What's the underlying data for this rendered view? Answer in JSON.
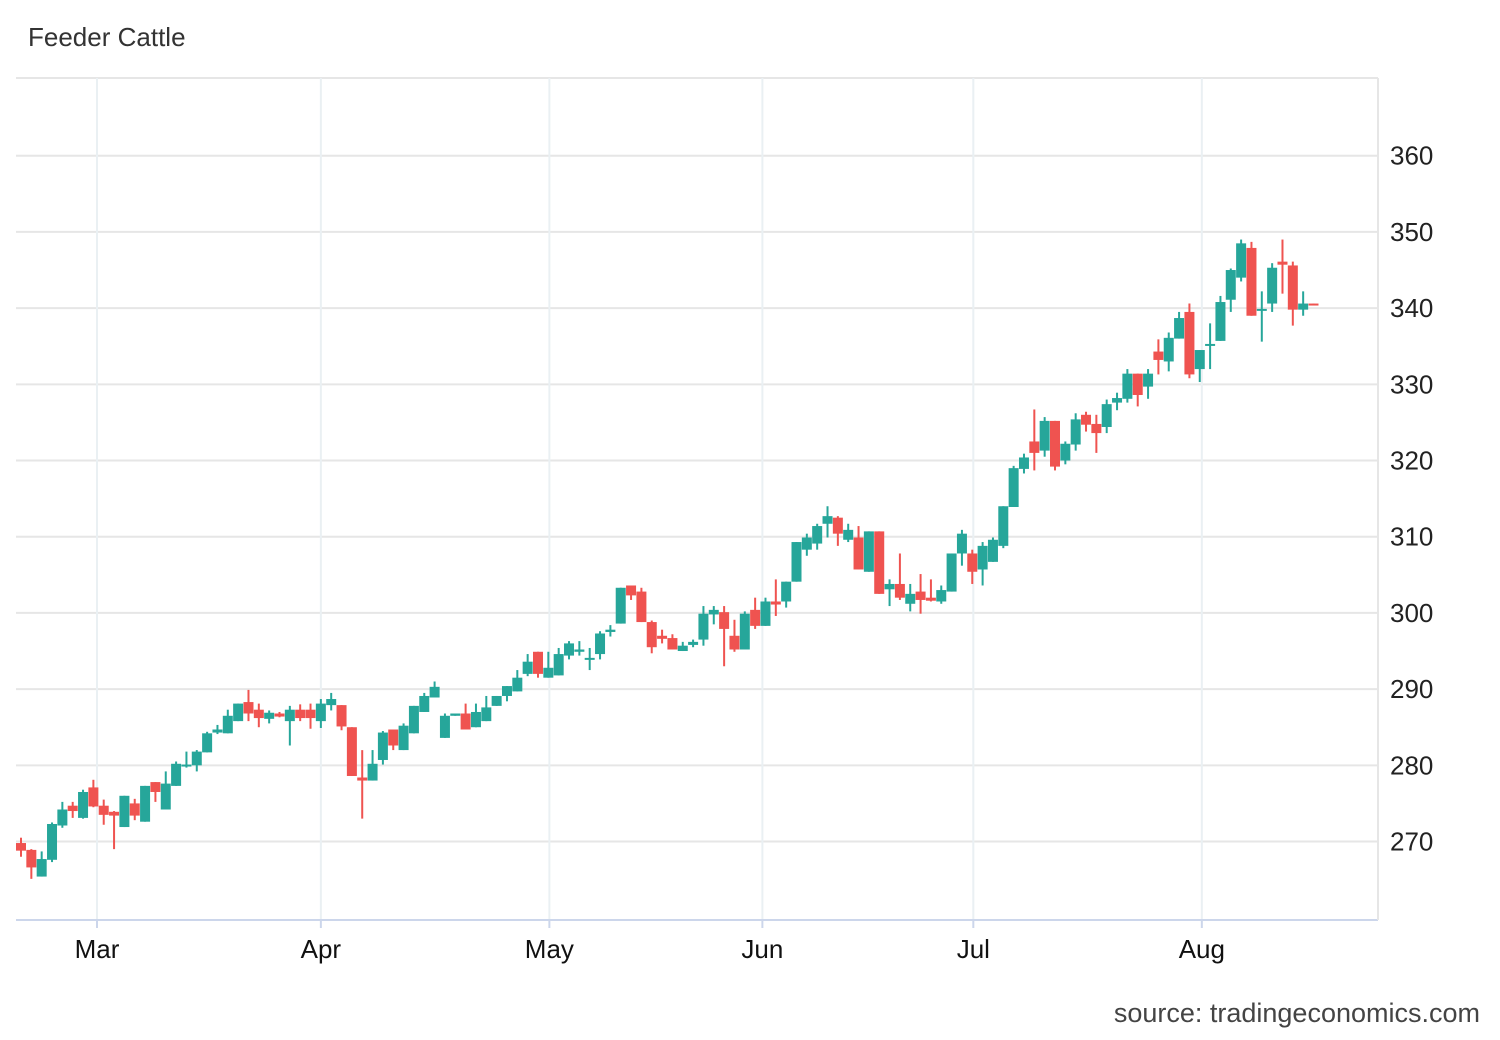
{
  "title": "Feeder Cattle",
  "source": "source: tradingeconomics.com",
  "chart_data": {
    "type": "candlestick",
    "title": "Feeder Cattle",
    "xlabel": "",
    "ylabel": "",
    "ylim": [
      259.7,
      370.2
    ],
    "grid": true,
    "y_axis_side": "right",
    "yticks": [
      270,
      280,
      290,
      300,
      310,
      320,
      330,
      340,
      350,
      360
    ],
    "xticks": [
      {
        "label": "Mar",
        "index": 7.35
      },
      {
        "label": "Apr",
        "index": 29.0
      },
      {
        "label": "May",
        "index": 51.1
      },
      {
        "label": "Jun",
        "index": 71.7
      },
      {
        "label": "Jul",
        "index": 92.1
      },
      {
        "label": "Aug",
        "index": 114.2
      }
    ],
    "colors": {
      "up": "#26a69a",
      "down": "#ef5350"
    },
    "ohlc_columns": [
      "open",
      "high",
      "low",
      "close"
    ],
    "candles": [
      [
        269.8,
        270.5,
        268.0,
        268.8
      ],
      [
        268.9,
        269.0,
        265.1,
        266.6
      ],
      [
        265.4,
        268.7,
        265.4,
        267.7
      ],
      [
        267.6,
        272.5,
        267.3,
        272.3
      ],
      [
        272.1,
        275.2,
        271.8,
        274.2
      ],
      [
        274.7,
        275.2,
        273.1,
        274.0
      ],
      [
        273.1,
        276.8,
        273.0,
        276.5
      ],
      [
        277.1,
        278.1,
        274.5,
        274.6
      ],
      [
        274.7,
        275.5,
        272.2,
        273.5
      ],
      [
        273.9,
        274.0,
        269.0,
        273.4
      ],
      [
        271.9,
        276.0,
        271.9,
        276.0
      ],
      [
        275.0,
        275.6,
        272.8,
        273.4
      ],
      [
        272.6,
        277.3,
        272.6,
        277.3
      ],
      [
        277.8,
        277.8,
        275.2,
        276.5
      ],
      [
        274.2,
        279.2,
        274.2,
        277.6
      ],
      [
        277.3,
        280.5,
        277.3,
        280.2
      ],
      [
        279.9,
        281.8,
        279.7,
        280.1
      ],
      [
        280.0,
        282.0,
        279.2,
        281.8
      ],
      [
        281.7,
        284.4,
        281.7,
        284.2
      ],
      [
        284.3,
        285.3,
        284.1,
        284.7
      ],
      [
        284.2,
        287.3,
        284.2,
        286.5
      ],
      [
        285.8,
        288.1,
        285.8,
        288.1
      ],
      [
        288.3,
        289.9,
        285.8,
        286.8
      ],
      [
        287.3,
        288.1,
        285.0,
        286.2
      ],
      [
        286.1,
        287.2,
        285.5,
        286.9
      ],
      [
        286.8,
        287.0,
        286.3,
        286.4
      ],
      [
        285.8,
        287.8,
        282.6,
        287.3
      ],
      [
        287.3,
        288.0,
        285.8,
        286.2
      ],
      [
        287.3,
        288.1,
        284.8,
        286.2
      ],
      [
        285.8,
        288.7,
        284.9,
        288.1
      ],
      [
        287.9,
        289.5,
        287.2,
        288.7
      ],
      [
        287.9,
        287.9,
        284.6,
        285.1
      ],
      [
        285.0,
        285.0,
        278.6,
        278.6
      ],
      [
        278.4,
        282.0,
        273.0,
        278.0
      ],
      [
        278.0,
        282.0,
        278.0,
        280.2
      ],
      [
        280.7,
        284.5,
        280.1,
        284.3
      ],
      [
        284.7,
        284.7,
        282.0,
        282.6
      ],
      [
        282.0,
        285.5,
        282.0,
        285.2
      ],
      [
        284.2,
        287.8,
        284.2,
        287.8
      ],
      [
        287.0,
        289.5,
        287.0,
        289.1
      ],
      [
        288.9,
        291.0,
        288.9,
        290.3
      ],
      [
        283.6,
        286.8,
        283.6,
        286.5
      ],
      [
        286.5,
        286.8,
        286.5,
        286.8
      ],
      [
        286.8,
        288.1,
        284.7,
        284.7
      ],
      [
        285.0,
        288.1,
        285.0,
        287.0
      ],
      [
        285.8,
        289.1,
        285.8,
        287.6
      ],
      [
        287.8,
        289.1,
        287.8,
        289.1
      ],
      [
        289.1,
        290.4,
        288.4,
        290.4
      ],
      [
        289.7,
        292.5,
        289.7,
        291.5
      ],
      [
        292.0,
        294.6,
        291.7,
        293.6
      ],
      [
        294.9,
        294.9,
        291.5,
        292.0
      ],
      [
        291.5,
        294.9,
        291.5,
        292.8
      ],
      [
        291.8,
        295.4,
        291.8,
        294.6
      ],
      [
        294.4,
        296.3,
        293.9,
        296.0
      ],
      [
        294.9,
        296.3,
        294.4,
        295.2
      ],
      [
        293.9,
        295.4,
        292.5,
        294.1
      ],
      [
        294.6,
        297.6,
        293.9,
        297.3
      ],
      [
        297.5,
        298.4,
        296.9,
        297.8
      ],
      [
        298.6,
        303.3,
        298.6,
        303.3
      ],
      [
        303.6,
        303.6,
        301.7,
        302.3
      ],
      [
        302.8,
        303.3,
        298.8,
        298.8
      ],
      [
        298.8,
        299.0,
        294.7,
        295.5
      ],
      [
        297.0,
        297.8,
        296.0,
        296.6
      ],
      [
        296.7,
        297.2,
        295.2,
        295.2
      ],
      [
        295.0,
        296.2,
        295.0,
        295.7
      ],
      [
        295.8,
        296.5,
        295.5,
        296.2
      ],
      [
        296.5,
        300.9,
        295.7,
        299.9
      ],
      [
        299.8,
        300.9,
        298.5,
        300.4
      ],
      [
        300.1,
        300.9,
        293.0,
        297.9
      ],
      [
        297.0,
        299.1,
        294.9,
        295.2
      ],
      [
        295.2,
        300.2,
        295.2,
        299.9
      ],
      [
        300.4,
        302.0,
        297.9,
        298.3
      ],
      [
        298.3,
        302.0,
        298.3,
        301.5
      ],
      [
        301.5,
        304.4,
        299.6,
        301.1
      ],
      [
        301.5,
        304.1,
        300.7,
        304.1
      ],
      [
        304.1,
        309.3,
        304.1,
        309.3
      ],
      [
        308.3,
        310.4,
        307.5,
        309.9
      ],
      [
        309.1,
        311.7,
        308.3,
        311.4
      ],
      [
        311.7,
        314.0,
        309.9,
        312.7
      ],
      [
        312.5,
        312.7,
        308.8,
        310.4
      ],
      [
        309.6,
        311.7,
        309.3,
        310.9
      ],
      [
        309.9,
        311.4,
        305.7,
        305.7
      ],
      [
        305.4,
        310.7,
        305.4,
        310.7
      ],
      [
        310.7,
        310.7,
        302.5,
        302.5
      ],
      [
        303.1,
        304.4,
        300.9,
        303.8
      ],
      [
        303.8,
        307.8,
        301.7,
        302.0
      ],
      [
        301.2,
        303.8,
        300.2,
        302.5
      ],
      [
        302.8,
        305.1,
        299.9,
        301.7
      ],
      [
        302.0,
        304.4,
        301.5,
        301.6
      ],
      [
        301.5,
        303.6,
        301.2,
        303.0
      ],
      [
        302.8,
        307.8,
        302.8,
        307.8
      ],
      [
        307.8,
        310.9,
        306.2,
        310.4
      ],
      [
        307.8,
        308.3,
        303.8,
        305.4
      ],
      [
        305.7,
        309.3,
        303.6,
        308.8
      ],
      [
        306.7,
        309.9,
        306.7,
        309.6
      ],
      [
        308.8,
        314.0,
        308.5,
        314.0
      ],
      [
        313.9,
        319.3,
        313.9,
        319.0
      ],
      [
        318.9,
        320.9,
        318.3,
        320.4
      ],
      [
        322.5,
        326.7,
        318.7,
        321.0
      ],
      [
        321.3,
        325.7,
        320.5,
        325.2
      ],
      [
        325.2,
        325.2,
        318.7,
        319.2
      ],
      [
        320.0,
        322.5,
        319.5,
        322.2
      ],
      [
        322.1,
        326.2,
        321.3,
        325.4
      ],
      [
        326.0,
        326.4,
        323.8,
        324.7
      ],
      [
        324.8,
        326.0,
        321.0,
        323.6
      ],
      [
        324.4,
        328.0,
        323.6,
        327.4
      ],
      [
        327.6,
        328.9,
        326.6,
        328.2
      ],
      [
        328.1,
        332.0,
        327.6,
        331.4
      ],
      [
        331.4,
        331.4,
        327.1,
        328.6
      ],
      [
        329.7,
        332.0,
        328.1,
        331.4
      ],
      [
        334.3,
        335.9,
        331.3,
        333.2
      ],
      [
        333.0,
        336.8,
        331.7,
        336.1
      ],
      [
        336.0,
        339.5,
        336.0,
        338.7
      ],
      [
        339.5,
        340.6,
        330.8,
        331.3
      ],
      [
        332.0,
        334.5,
        330.3,
        334.5
      ],
      [
        335.1,
        338.0,
        332.0,
        335.3
      ],
      [
        335.7,
        341.6,
        335.7,
        340.8
      ],
      [
        341.1,
        345.2,
        339.5,
        345.0
      ],
      [
        344.0,
        349.0,
        343.5,
        348.5
      ],
      [
        347.9,
        348.7,
        339.0,
        339.0
      ],
      [
        339.7,
        342.2,
        335.6,
        339.9
      ],
      [
        340.6,
        345.9,
        339.5,
        345.3
      ],
      [
        346.1,
        349.0,
        341.9,
        345.7
      ],
      [
        345.6,
        346.1,
        337.7,
        339.8
      ],
      [
        339.8,
        342.2,
        339.0,
        340.6
      ],
      [
        340.6,
        340.6,
        340.4,
        340.4
      ]
    ]
  }
}
